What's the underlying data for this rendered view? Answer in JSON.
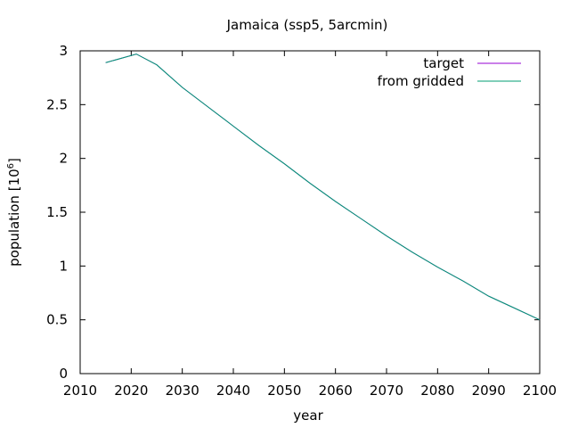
{
  "chart_data": {
    "type": "line",
    "title": "Jamaica (ssp5, 5arcmin)",
    "xlabel": "year",
    "ylabel": "population [10^6]",
    "ylabel_parts": {
      "base": "population [10",
      "exponent": "6",
      "close": "]"
    },
    "xlim": [
      2010,
      2100
    ],
    "ylim": [
      0,
      3
    ],
    "x_ticks": [
      2010,
      2020,
      2030,
      2040,
      2050,
      2060,
      2070,
      2080,
      2090,
      2100
    ],
    "y_ticks": [
      0,
      0.5,
      1,
      1.5,
      2,
      2.5,
      3
    ],
    "y_tick_labels": [
      "0",
      "0.5",
      "1",
      "1.5",
      "2",
      "2.5",
      "3"
    ],
    "grid": false,
    "legend_position": "top-right",
    "series": [
      {
        "name": "target",
        "color": "#9400d3",
        "x": [
          2015,
          2021,
          2025,
          2030,
          2035,
          2040,
          2045,
          2050,
          2055,
          2060,
          2065,
          2070,
          2075,
          2080,
          2085,
          2090,
          2095,
          2100
        ],
        "y": [
          2.89,
          2.97,
          2.87,
          2.66,
          2.48,
          2.3,
          2.12,
          1.95,
          1.77,
          1.6,
          1.44,
          1.28,
          1.13,
          0.99,
          0.86,
          0.72,
          0.61,
          0.5
        ]
      },
      {
        "name": "from gridded",
        "color": "#009e73",
        "x": [
          2015,
          2021,
          2025,
          2030,
          2035,
          2040,
          2045,
          2050,
          2055,
          2060,
          2065,
          2070,
          2075,
          2080,
          2085,
          2090,
          2095,
          2100
        ],
        "y": [
          2.89,
          2.97,
          2.87,
          2.66,
          2.48,
          2.3,
          2.12,
          1.95,
          1.77,
          1.6,
          1.44,
          1.28,
          1.13,
          0.99,
          0.86,
          0.72,
          0.61,
          0.5
        ]
      }
    ]
  }
}
